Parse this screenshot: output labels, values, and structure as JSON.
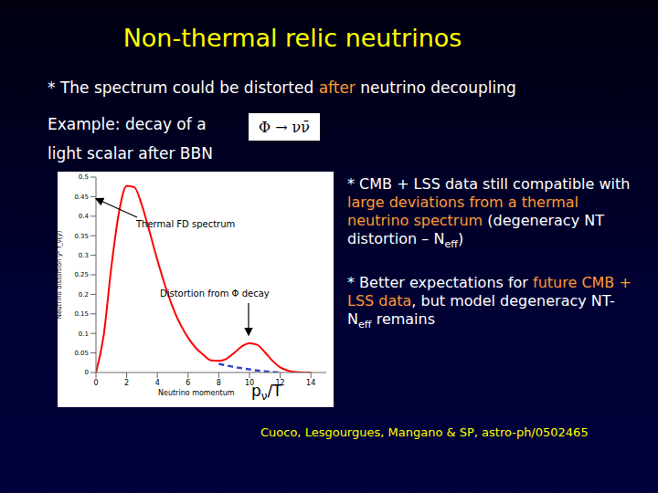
{
  "title": "Non-thermal relic neutrinos",
  "bullets": [
    [
      {
        "text": "* The spectrum could be distorted "
      },
      {
        "text": "after",
        "color": "#ff9933"
      },
      {
        "text": " neutrino decoupling"
      }
    ]
  ],
  "example": {
    "lines": [
      "Example: decay of a",
      "light scalar after BBN"
    ],
    "formula": "Φ → νν̄"
  },
  "right_points": [
    [
      {
        "text": "* CMB + LSS data still compatible with "
      },
      {
        "text": "large deviations from a thermal neutrino spectrum",
        "color": "#ff9933"
      },
      {
        "text": " (degeneracy NT distortion – N"
      },
      {
        "text": "eff",
        "sub": true
      },
      {
        "text": ")"
      }
    ],
    [
      {
        "text": "* Better expectations for "
      },
      {
        "text": "future CMB + LSS data",
        "color": "#ff9933"
      },
      {
        "text": ", but model degeneracy NT- N"
      },
      {
        "text": "eff",
        "sub": true
      },
      {
        "text": " remains"
      }
    ]
  ],
  "citation": "Cuoco, Lesgourgues, Mangano & SP, astro-ph/0502465",
  "chart_data": {
    "type": "line",
    "x_label": "Neutrino momentum",
    "x_symbol": [
      {
        "text": "p"
      },
      {
        "text": "ν",
        "sub": true
      },
      {
        "text": "/T"
      }
    ],
    "y_label": "Neutrino distortion y² f_ν(y)",
    "annotations": [
      "Thermal FD spectrum",
      "Distortion from Φ decay"
    ],
    "x": [
      0,
      0.5,
      1,
      1.5,
      2,
      2.5,
      3,
      3.5,
      4,
      4.5,
      5,
      5.5,
      6,
      6.5,
      7,
      7.5,
      8,
      8.5,
      9,
      9.5,
      10,
      10.5,
      11,
      11.5,
      12,
      12.5,
      13,
      13.5,
      14
    ],
    "series": [
      {
        "color": "#ff0000",
        "line_style": "solid",
        "values": [
          0,
          0.094,
          0.269,
          0.41,
          0.477,
          0.474,
          0.427,
          0.359,
          0.288,
          0.223,
          0.167,
          0.123,
          0.089,
          0.063,
          0.045,
          0.031,
          0.03,
          0.035,
          0.05,
          0.067,
          0.075,
          0.071,
          0.052,
          0.03,
          0.013,
          0.005,
          0.001,
          0,
          0
        ]
      },
      {
        "color": "#3344cc",
        "line_style": "dashed",
        "values": [
          null,
          null,
          null,
          null,
          null,
          null,
          null,
          null,
          null,
          null,
          null,
          null,
          null,
          null,
          null,
          null,
          0.022,
          0.018,
          0.014,
          0.011,
          0.008,
          0.005,
          0.003,
          0.001,
          0,
          null,
          null,
          null,
          null
        ]
      }
    ],
    "xlim": [
      0,
      15
    ],
    "xticks": [
      0,
      2,
      4,
      6,
      8,
      10,
      12,
      14
    ],
    "ylim": [
      0,
      0.5
    ],
    "yticks": [
      0,
      0.05,
      0.1,
      0.15,
      0.2,
      0.25,
      0.3,
      0.35,
      0.4,
      0.45,
      0.5
    ],
    "grid": false
  }
}
